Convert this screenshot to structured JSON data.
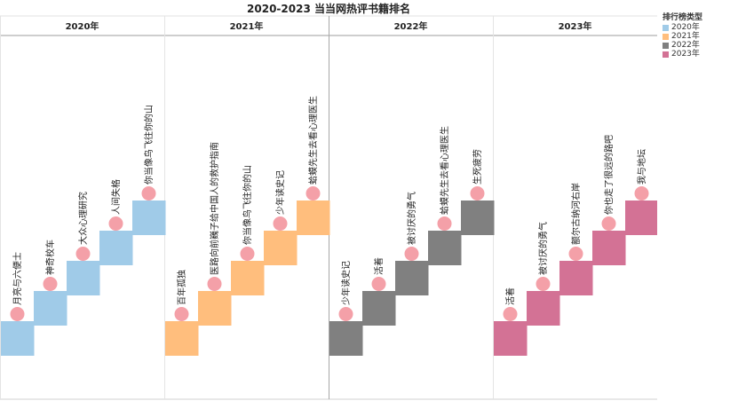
{
  "chart_data": {
    "type": "bar",
    "title": "2020-2023 当当网热评书籍排名",
    "legend_title": "排行榜类型",
    "legend_position": "top-right",
    "facet_labels": [
      "2020年",
      "2021年",
      "2022年",
      "2023年"
    ],
    "y_axis": "rank (staircase, 1 = bottom step, 5 = top step)",
    "series": [
      {
        "name": "2020年",
        "color": "#a0cbe8",
        "ranks": [
          1,
          2,
          3,
          4,
          5
        ],
        "books": [
          "月亮与六便士",
          "神奇校车",
          "大众心理研究",
          "人间失格",
          "你当像鸟飞往你的山"
        ]
      },
      {
        "name": "2021年",
        "color": "#ffbe7d",
        "ranks": [
          1,
          2,
          3,
          4,
          5
        ],
        "books": [
          "百年孤独",
          "医路向前巍子给中国人的救护指南",
          "你当像鸟飞往你的山",
          "少年读史记",
          "蛤蟆先生去看心理医生"
        ]
      },
      {
        "name": "2022年",
        "color": "#808080",
        "ranks": [
          1,
          2,
          3,
          4,
          5
        ],
        "books": [
          "少年读史记",
          "活着",
          "被讨厌的勇气",
          "蛤蟆先生去看心理医生",
          "生死疲劳"
        ]
      },
      {
        "name": "2023年",
        "color": "#d37295",
        "ranks": [
          1,
          2,
          3,
          4,
          5
        ],
        "books": [
          "活着",
          "被讨厌的勇气",
          "额尔古纳河右岸",
          "你也走了很远的路吧",
          "我与地坛"
        ]
      }
    ],
    "marker_color": "#f4a0a8"
  }
}
